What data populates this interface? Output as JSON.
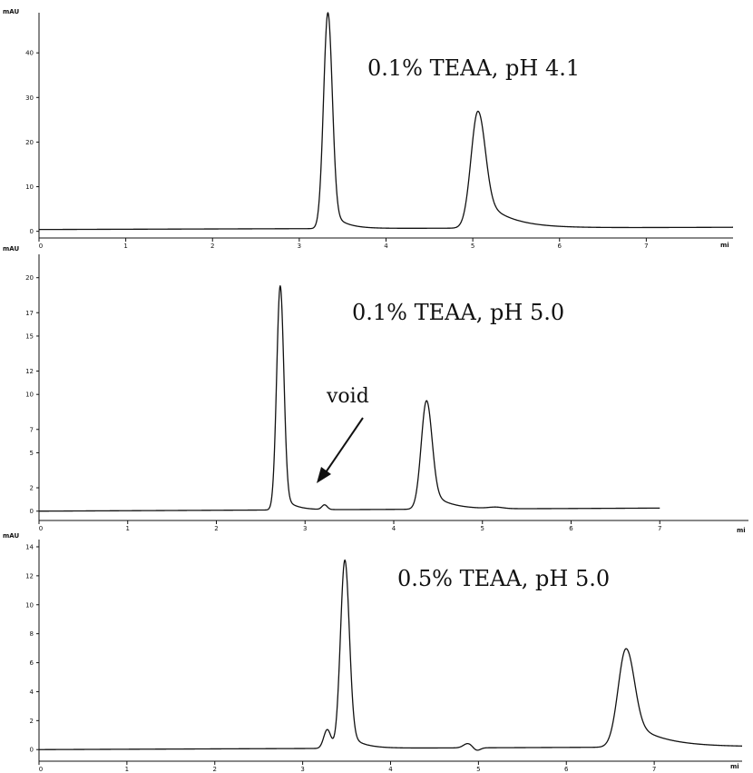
{
  "chart_data": [
    {
      "type": "line",
      "title": "0.1% TEAA, pH 4.1",
      "ylabel": "mAU",
      "xlabel": "mi",
      "xlim": [
        0,
        8.0
      ],
      "ylim": [
        -1.5,
        49
      ],
      "xticks": [
        "0",
        "1",
        "2",
        "3",
        "4",
        "5",
        "6",
        "7"
      ],
      "yticks": [
        "0",
        "10",
        "20",
        "30",
        "40"
      ],
      "baseline": 0.4,
      "trace_end": 8.0,
      "drift": 0.5,
      "peaks": [
        {
          "rt": 3.33,
          "height": 48.4,
          "width": 0.05,
          "tail": 0.1,
          "tail_tau": 0.15
        },
        {
          "rt": 5.06,
          "height": 26.2,
          "width": 0.08,
          "tail": 0.3,
          "tail_tau": 0.3
        }
      ],
      "annotations": []
    },
    {
      "type": "line",
      "title": "0.1% TEAA, pH 5.0",
      "ylabel": "mAU",
      "xlabel": "mi",
      "xlim": [
        0,
        8.0
      ],
      "ylim": [
        -0.8,
        22
      ],
      "xticks": [
        "0",
        "1",
        "2",
        "3",
        "4",
        "5",
        "6",
        "7"
      ],
      "yticks": [
        "0",
        "2",
        "5",
        "7",
        "10",
        "12",
        "15",
        "17",
        "20"
      ],
      "baseline": 0.0,
      "trace_end": 7.0,
      "drift": 0.3,
      "peaks": [
        {
          "rt": 2.72,
          "height": 19.2,
          "width": 0.04,
          "tail": 0.08,
          "tail_tau": 0.12
        },
        {
          "rt": 3.22,
          "height": 0.4,
          "width": 0.03,
          "tail": 0.05,
          "tail_tau": 0.05
        },
        {
          "rt": 4.37,
          "height": 9.3,
          "width": 0.06,
          "tail": 0.2,
          "tail_tau": 0.2
        },
        {
          "rt": 5.15,
          "height": 0.12,
          "width": 0.08,
          "tail": 0.05,
          "tail_tau": 0.05
        }
      ],
      "annotations": [
        {
          "text": "void",
          "target_x": 3.1,
          "target_y": 0.8
        }
      ]
    },
    {
      "type": "line",
      "title": "0.5% TEAA, pH 5.0",
      "ylabel": "mAU",
      "xlabel": "mi",
      "xlim": [
        0,
        8.0
      ],
      "ylim": [
        -0.8,
        14.5
      ],
      "xticks": [
        "0",
        "1",
        "2",
        "3",
        "4",
        "5",
        "6",
        "7"
      ],
      "yticks": [
        "0",
        "2",
        "4",
        "6",
        "8",
        "10",
        "12",
        "14"
      ],
      "baseline": 0.0,
      "trace_end": 8.0,
      "drift": 0.2,
      "peaks": [
        {
          "rt": 3.28,
          "height": 1.3,
          "width": 0.04,
          "tail": 0.04,
          "tail_tau": 0.05
        },
        {
          "rt": 3.48,
          "height": 13.0,
          "width": 0.05,
          "tail": 0.1,
          "tail_tau": 0.15
        },
        {
          "rt": 4.88,
          "height": 0.3,
          "width": 0.05,
          "tail": 0.03,
          "tail_tau": 0.05
        },
        {
          "rt": 4.98,
          "height": -0.2,
          "width": 0.04,
          "tail": 0.0,
          "tail_tau": 0.05
        },
        {
          "rt": 6.68,
          "height": 6.8,
          "width": 0.09,
          "tail": 0.3,
          "tail_tau": 0.35
        }
      ],
      "annotations": []
    }
  ]
}
